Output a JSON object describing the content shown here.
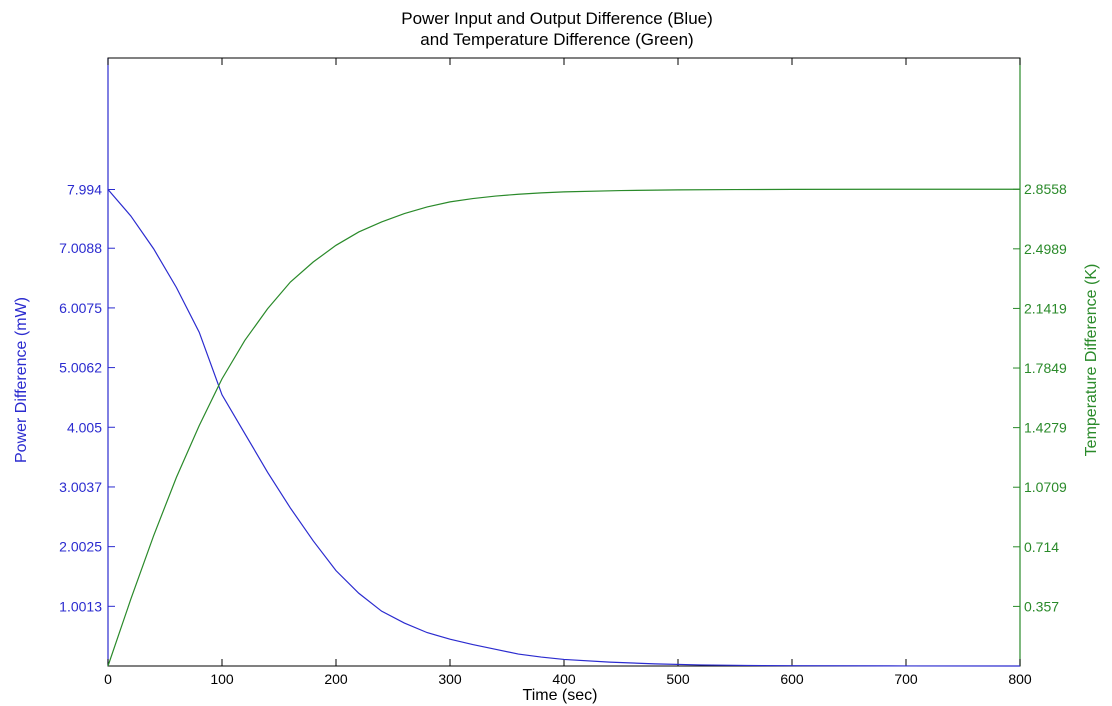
{
  "chart_data": {
    "type": "line",
    "title": [
      "Power Input and Output Difference (Blue)",
      "and Temperature Difference (Green)"
    ],
    "xlabel": "Time (sec)",
    "ylabel_left": "Power Difference (mW)",
    "ylabel_right": "Temperature Difference (K)",
    "xlim": [
      0,
      800
    ],
    "ylim_left": [
      0,
      10.2
    ],
    "ylim_right": [
      0,
      3.642
    ],
    "x_ticks": [
      "0",
      "100",
      "200",
      "300",
      "400",
      "500",
      "600",
      "700",
      "800"
    ],
    "y_left_ticks": [
      {
        "value": 1.0013,
        "label": "1.0013"
      },
      {
        "value": 2.0025,
        "label": "2.0025"
      },
      {
        "value": 3.0037,
        "label": "3.0037"
      },
      {
        "value": 4.005,
        "label": "4.005"
      },
      {
        "value": 5.0062,
        "label": "5.0062"
      },
      {
        "value": 6.0075,
        "label": "6.0075"
      },
      {
        "value": 7.0088,
        "label": "7.0088"
      },
      {
        "value": 7.994,
        "label": "7.994"
      }
    ],
    "y_right_ticks": [
      {
        "value": 0.357,
        "label": "0.357"
      },
      {
        "value": 0.714,
        "label": "0.714"
      },
      {
        "value": 1.0709,
        "label": "1.0709"
      },
      {
        "value": 1.4279,
        "label": "1.4279"
      },
      {
        "value": 1.7849,
        "label": "1.7849"
      },
      {
        "value": 2.1419,
        "label": "2.1419"
      },
      {
        "value": 2.4989,
        "label": "2.4989"
      },
      {
        "value": 2.8558,
        "label": "2.8558"
      }
    ],
    "grid": false,
    "series": [
      {
        "axis": "left",
        "color": "#2b2bcf",
        "points": [
          [
            0,
            7.994
          ],
          [
            20,
            7.55
          ],
          [
            40,
            7.0
          ],
          [
            60,
            6.35
          ],
          [
            80,
            5.6
          ],
          [
            100,
            4.55
          ],
          [
            120,
            3.9
          ],
          [
            140,
            3.25
          ],
          [
            160,
            2.65
          ],
          [
            180,
            2.1
          ],
          [
            200,
            1.6
          ],
          [
            220,
            1.22
          ],
          [
            240,
            0.92
          ],
          [
            260,
            0.72
          ],
          [
            280,
            0.56
          ],
          [
            300,
            0.45
          ],
          [
            320,
            0.36
          ],
          [
            340,
            0.28
          ],
          [
            360,
            0.2
          ],
          [
            380,
            0.15
          ],
          [
            400,
            0.11
          ],
          [
            440,
            0.065
          ],
          [
            480,
            0.035
          ],
          [
            520,
            0.018
          ],
          [
            560,
            0.009
          ],
          [
            600,
            0.005
          ],
          [
            700,
            0.001
          ],
          [
            800,
            0.0
          ]
        ]
      },
      {
        "axis": "right",
        "color": "#2a8a2a",
        "points": [
          [
            0,
            0.0
          ],
          [
            20,
            0.4
          ],
          [
            40,
            0.78
          ],
          [
            60,
            1.13
          ],
          [
            80,
            1.44
          ],
          [
            100,
            1.72
          ],
          [
            120,
            1.95
          ],
          [
            140,
            2.14
          ],
          [
            160,
            2.3
          ],
          [
            180,
            2.42
          ],
          [
            200,
            2.52
          ],
          [
            220,
            2.6
          ],
          [
            240,
            2.66
          ],
          [
            260,
            2.71
          ],
          [
            280,
            2.75
          ],
          [
            300,
            2.78
          ],
          [
            320,
            2.8
          ],
          [
            340,
            2.815
          ],
          [
            360,
            2.826
          ],
          [
            380,
            2.834
          ],
          [
            400,
            2.84
          ],
          [
            450,
            2.848
          ],
          [
            500,
            2.852
          ],
          [
            550,
            2.854
          ],
          [
            600,
            2.855
          ],
          [
            700,
            2.8558
          ],
          [
            800,
            2.8558
          ]
        ]
      }
    ]
  }
}
